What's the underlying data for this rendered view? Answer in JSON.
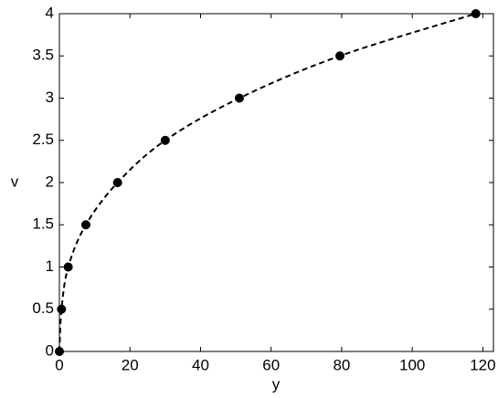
{
  "chart_data": {
    "type": "scatter",
    "xlabel": "y",
    "ylabel": "v",
    "xlim": [
      0,
      123
    ],
    "ylim": [
      0,
      4
    ],
    "xticks": [
      0,
      20,
      40,
      60,
      80,
      100,
      120
    ],
    "yticks": [
      0,
      0.5,
      1,
      1.5,
      2,
      2.5,
      3,
      3.5,
      4
    ],
    "grid": false,
    "series": [
      {
        "color": "#000000",
        "line_style": "dashed",
        "marker": "circle",
        "x": [
          0,
          0.6,
          2.5,
          7.5,
          16.5,
          30,
          51,
          79.5,
          118
        ],
        "values": [
          0,
          0.5,
          1,
          1.5,
          2,
          2.5,
          3,
          3.5,
          4
        ]
      }
    ]
  }
}
